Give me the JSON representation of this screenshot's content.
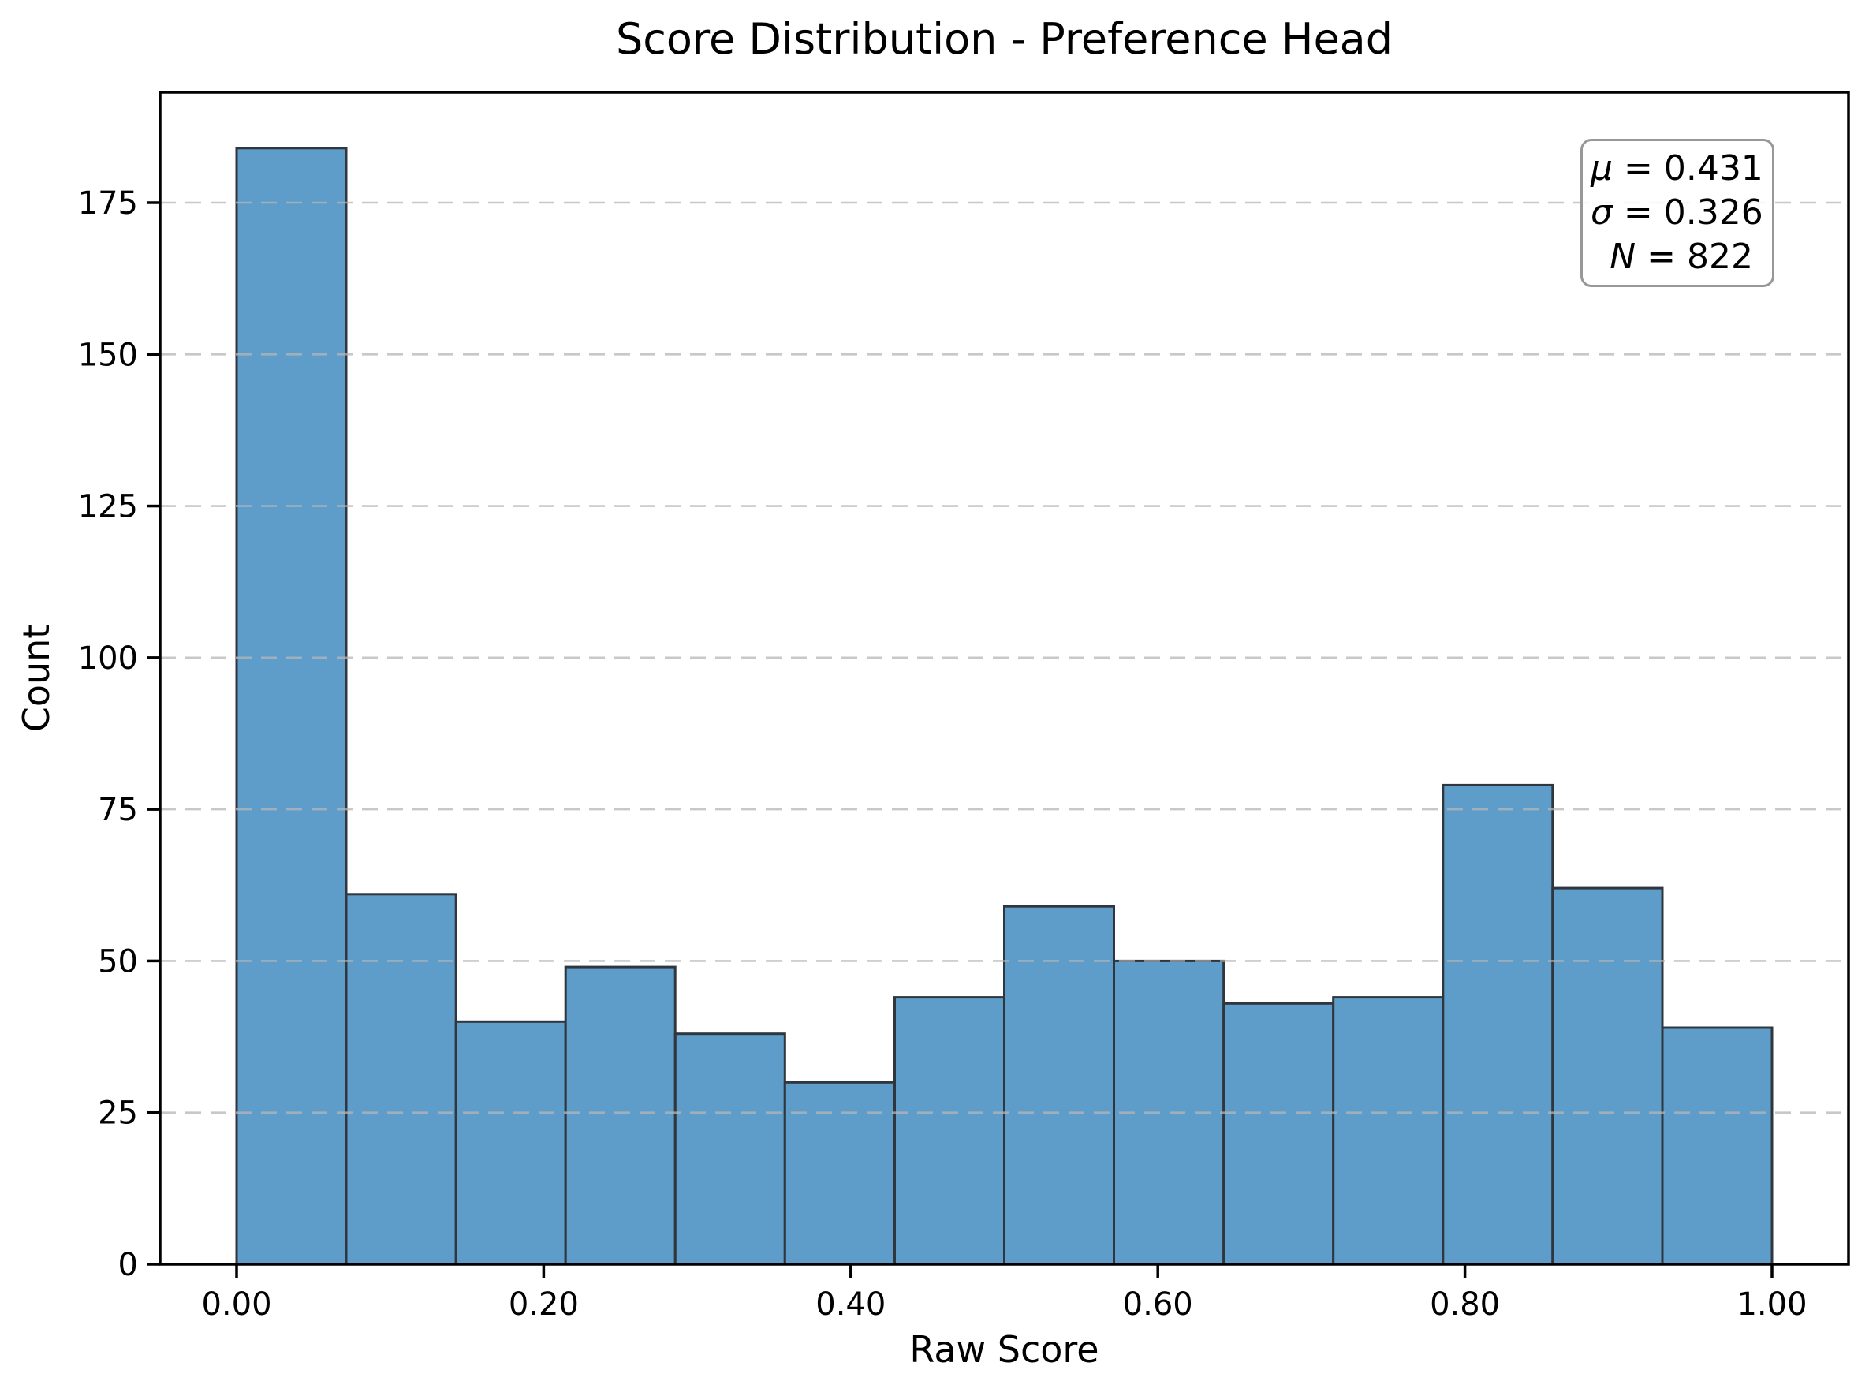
{
  "chart_data": {
    "type": "histogram",
    "title": "Score Distribution - Preference Head",
    "xlabel": "Raw Score",
    "ylabel": "Count",
    "bin_edges": [
      0.0,
      0.0714,
      0.1429,
      0.2143,
      0.2857,
      0.3571,
      0.4286,
      0.5,
      0.5714,
      0.6429,
      0.7143,
      0.7857,
      0.8571,
      0.9286,
      1.0
    ],
    "counts": [
      184,
      61,
      40,
      49,
      38,
      30,
      44,
      59,
      50,
      43,
      44,
      79,
      62,
      39
    ],
    "total_n": 822,
    "xlim": [
      -0.05,
      1.05
    ],
    "ylim": [
      0,
      193.2
    ],
    "x_ticks": [
      0.0,
      0.2,
      0.4,
      0.6,
      0.8,
      1.0
    ],
    "x_tick_labels": [
      "0.00",
      "0.20",
      "0.40",
      "0.60",
      "0.80",
      "1.00"
    ],
    "y_ticks": [
      0,
      25,
      50,
      75,
      100,
      125,
      150,
      175
    ],
    "y_tick_labels": [
      "0",
      "25",
      "50",
      "75",
      "100",
      "125",
      "150",
      "175"
    ],
    "grid": "dashed horizontal, drawn above bars",
    "legend": "none",
    "stats": {
      "lines": [
        {
          "sym": "μ",
          "rest": " = 0.431"
        },
        {
          "sym": "σ",
          "rest": " = 0.326"
        },
        {
          "sym": "N",
          "rest": " = 822"
        }
      ]
    },
    "colors": {
      "bar_fill": "#5E9DC9",
      "bar_edge": "#30363E",
      "grid_line": "#B6B6B6",
      "axis": "#000000",
      "stats_border": "#989898"
    }
  }
}
